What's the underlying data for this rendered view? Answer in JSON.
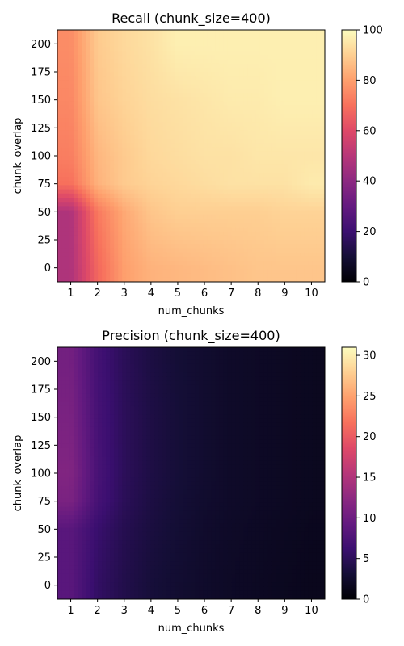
{
  "chart_data": [
    {
      "type": "heatmap",
      "title": "Recall (chunk_size=400)",
      "xlabel": "num_chunks",
      "ylabel": "chunk_overlap",
      "x": [
        1,
        2,
        3,
        4,
        5,
        6,
        7,
        8,
        9,
        10
      ],
      "y": [
        0,
        50,
        75,
        100,
        150,
        200
      ],
      "xticks": [
        "1",
        "2",
        "3",
        "4",
        "5",
        "6",
        "7",
        "8",
        "9",
        "10"
      ],
      "yticks": [
        "0",
        "25",
        "50",
        "75",
        "100",
        "125",
        "150",
        "175",
        "200"
      ],
      "ytick_values": [
        0,
        25,
        50,
        75,
        100,
        125,
        150,
        175,
        200
      ],
      "ylim": [
        -12.5,
        212.5
      ],
      "colormap": "magma",
      "vmin": 0,
      "vmax": 100,
      "colorbar_ticks": [
        "0",
        "20",
        "40",
        "60",
        "80",
        "100"
      ],
      "colorbar_tick_values": [
        0,
        20,
        40,
        60,
        80,
        100
      ],
      "values": [
        [
          48,
          68,
          80,
          84,
          85,
          86,
          87,
          88,
          88,
          88
        ],
        [
          48,
          72,
          82,
          88,
          90,
          90,
          90,
          90,
          91,
          91
        ],
        [
          70,
          84,
          89,
          91,
          92,
          93,
          94,
          94,
          94,
          96
        ],
        [
          73,
          85,
          89,
          92,
          93,
          94,
          94,
          95,
          95,
          95
        ],
        [
          75,
          88,
          91,
          93,
          94,
          95,
          96,
          96,
          97,
          97
        ],
        [
          76,
          89,
          92,
          94,
          97,
          97,
          97,
          97,
          97,
          97
        ]
      ]
    },
    {
      "type": "heatmap",
      "title": "Precision (chunk_size=400)",
      "xlabel": "num_chunks",
      "ylabel": "chunk_overlap",
      "x": [
        1,
        2,
        3,
        4,
        5,
        6,
        7,
        8,
        9,
        10
      ],
      "y": [
        0,
        50,
        75,
        100,
        150,
        200
      ],
      "xticks": [
        "1",
        "2",
        "3",
        "4",
        "5",
        "6",
        "7",
        "8",
        "9",
        "10"
      ],
      "yticks": [
        "0",
        "25",
        "50",
        "75",
        "100",
        "125",
        "150",
        "175",
        "200"
      ],
      "ytick_values": [
        0,
        25,
        50,
        75,
        100,
        125,
        150,
        175,
        200
      ],
      "ylim": [
        -12.5,
        212.5
      ],
      "colormap": "magma",
      "vmin": 0,
      "vmax": 31,
      "colorbar_ticks": [
        "0",
        "5",
        "10",
        "15",
        "20",
        "25",
        "30"
      ],
      "colorbar_tick_values": [
        0,
        5,
        10,
        15,
        20,
        25,
        30
      ],
      "values": [
        [
          8.5,
          5.5,
          4.2,
          3.3,
          2.8,
          2.4,
          2.1,
          1.9,
          1.7,
          1.5
        ],
        [
          8.5,
          6.0,
          4.5,
          3.6,
          3.0,
          2.5,
          2.2,
          2.0,
          1.8,
          1.6
        ],
        [
          11.0,
          7.0,
          4.9,
          3.8,
          3.1,
          2.6,
          2.3,
          2.1,
          1.9,
          1.7
        ],
        [
          11.5,
          7.2,
          5.0,
          3.9,
          3.2,
          2.7,
          2.3,
          2.1,
          1.9,
          1.7
        ],
        [
          11.0,
          7.0,
          5.0,
          3.9,
          3.2,
          2.7,
          2.3,
          2.1,
          1.9,
          1.7
        ],
        [
          10.5,
          6.8,
          4.9,
          3.8,
          3.1,
          2.7,
          2.3,
          2.1,
          1.9,
          1.7
        ]
      ]
    }
  ]
}
